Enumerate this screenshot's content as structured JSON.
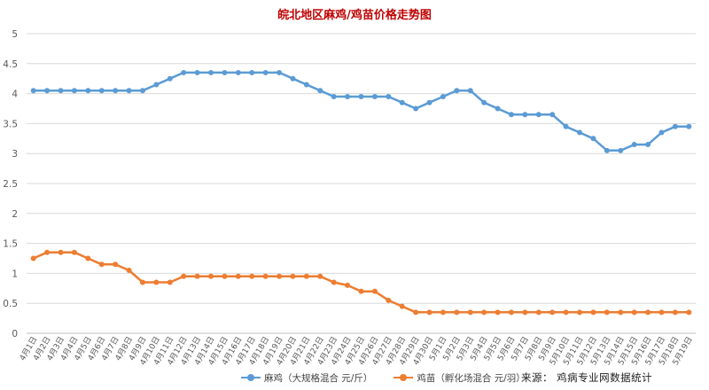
{
  "chart_data": {
    "type": "line",
    "title": "皖北地区麻鸡/鸡苗价格走势图",
    "xlabel": "",
    "ylabel": "",
    "ylim": [
      0,
      5
    ],
    "yticks": [
      "0",
      "0.5",
      "1",
      "1.5",
      "2",
      "2.5",
      "3",
      "3.5",
      "4",
      "4.5",
      "5"
    ],
    "grid": "horizontal",
    "legend_position": "bottom",
    "categories": [
      "4月1日",
      "4月2日",
      "4月3日",
      "4月4日",
      "4月5日",
      "4月6日",
      "4月7日",
      "4月8日",
      "4月9日",
      "4月10日",
      "4月11日",
      "4月12日",
      "4月13日",
      "4月14日",
      "4月15日",
      "4月16日",
      "4月17日",
      "4月18日",
      "4月19日",
      "4月20日",
      "4月21日",
      "4月22日",
      "4月23日",
      "4月24日",
      "4月25日",
      "4月26日",
      "4月27日",
      "4月28日",
      "4月29日",
      "4月30日",
      "5月1日",
      "5月2日",
      "5月3日",
      "5月4日",
      "5月5日",
      "5月6日",
      "5月7日",
      "5月8日",
      "5月9日",
      "5月10日",
      "5月11日",
      "5月12日",
      "5月13日",
      "5月14日",
      "5月15日",
      "5月16日",
      "5月17日",
      "5月18日",
      "5月19日"
    ],
    "series": [
      {
        "name": "麻鸡（大规格混合 元/斤）",
        "color": "#5b9bd5",
        "values": [
          4.05,
          4.05,
          4.05,
          4.05,
          4.05,
          4.05,
          4.05,
          4.05,
          4.05,
          4.15,
          4.25,
          4.35,
          4.35,
          4.35,
          4.35,
          4.35,
          4.35,
          4.35,
          4.35,
          4.25,
          4.15,
          4.05,
          3.95,
          3.95,
          3.95,
          3.95,
          3.95,
          3.85,
          3.75,
          3.85,
          3.95,
          4.05,
          4.05,
          3.85,
          3.75,
          3.65,
          3.65,
          3.65,
          3.65,
          3.45,
          3.35,
          3.25,
          3.05,
          3.05,
          3.15,
          3.15,
          3.35,
          3.45,
          3.45
        ]
      },
      {
        "name": "鸡苗（孵化场混合 元/羽）",
        "color": "#ed7d31",
        "values": [
          1.25,
          1.35,
          1.35,
          1.35,
          1.25,
          1.15,
          1.15,
          1.05,
          0.85,
          0.85,
          0.85,
          0.95,
          0.95,
          0.95,
          0.95,
          0.95,
          0.95,
          0.95,
          0.95,
          0.95,
          0.95,
          0.95,
          0.85,
          0.8,
          0.7,
          0.7,
          0.55,
          0.45,
          0.35,
          0.35,
          0.35,
          0.35,
          0.35,
          0.35,
          0.35,
          0.35,
          0.35,
          0.35,
          0.35,
          0.35,
          0.35,
          0.35,
          0.35,
          0.35,
          0.35,
          0.35,
          0.35,
          0.35,
          0.35
        ]
      }
    ]
  },
  "source_text": "来源： 鸡病专业网数据统计"
}
